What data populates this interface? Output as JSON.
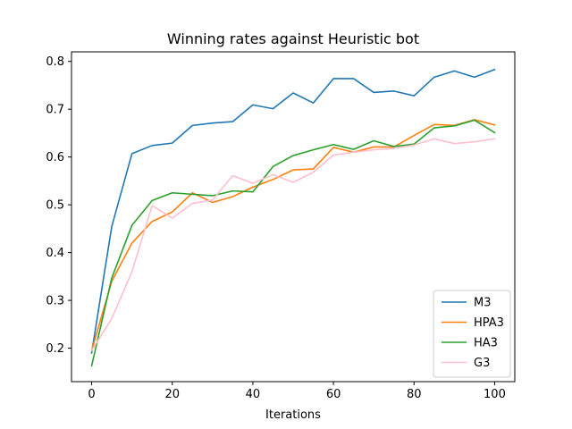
{
  "chart_data": {
    "type": "line",
    "title": "Winning rates against Heuristic bot",
    "xlabel": "Iterations",
    "ylabel": "",
    "xlim": [
      -5,
      105
    ],
    "ylim": [
      0.13,
      0.82
    ],
    "xticks": [
      0,
      20,
      40,
      60,
      80,
      100
    ],
    "yticks": [
      0.2,
      0.3,
      0.4,
      0.5,
      0.6,
      0.7,
      0.8
    ],
    "legend_position": "lower-right",
    "x": [
      0,
      5,
      10,
      15,
      20,
      25,
      30,
      35,
      40,
      45,
      50,
      55,
      60,
      65,
      70,
      75,
      80,
      85,
      90,
      95,
      100
    ],
    "series": [
      {
        "name": "M3",
        "color": "#1f77b4",
        "values": [
          0.19,
          0.455,
          0.607,
          0.624,
          0.629,
          0.666,
          0.671,
          0.674,
          0.709,
          0.701,
          0.734,
          0.713,
          0.764,
          0.764,
          0.735,
          0.738,
          0.728,
          0.767,
          0.78,
          0.767,
          0.783
        ]
      },
      {
        "name": "HPA3",
        "color": "#ff7f0e",
        "values": [
          0.195,
          0.34,
          0.42,
          0.465,
          0.485,
          0.525,
          0.505,
          0.517,
          0.537,
          0.553,
          0.573,
          0.575,
          0.62,
          0.61,
          0.621,
          0.621,
          0.645,
          0.668,
          0.666,
          0.678,
          0.667
        ]
      },
      {
        "name": "HA3",
        "color": "#2ca02c",
        "values": [
          0.163,
          0.347,
          0.457,
          0.509,
          0.525,
          0.522,
          0.519,
          0.529,
          0.527,
          0.58,
          0.603,
          0.615,
          0.626,
          0.616,
          0.634,
          0.622,
          0.627,
          0.661,
          0.665,
          0.677,
          0.651
        ]
      },
      {
        "name": "G3",
        "color": "#ffc0cb",
        "values": [
          0.195,
          0.262,
          0.36,
          0.498,
          0.472,
          0.503,
          0.51,
          0.561,
          0.545,
          0.563,
          0.547,
          0.568,
          0.604,
          0.61,
          0.615,
          0.618,
          0.625,
          0.638,
          0.628,
          0.632,
          0.638
        ]
      }
    ]
  }
}
